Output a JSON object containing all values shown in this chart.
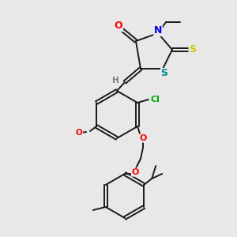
{
  "background_color": "#e8e8e8",
  "fig_size": [
    3.0,
    3.0
  ],
  "dpi": 100,
  "bond_color": "#1a1a1a",
  "atom_colors": {
    "O": "#ff0000",
    "N": "#0000ee",
    "S_yellow": "#cccc00",
    "S_teal": "#008b8b",
    "Cl": "#00aa00",
    "H": "#708090"
  },
  "font_size": 8.0
}
